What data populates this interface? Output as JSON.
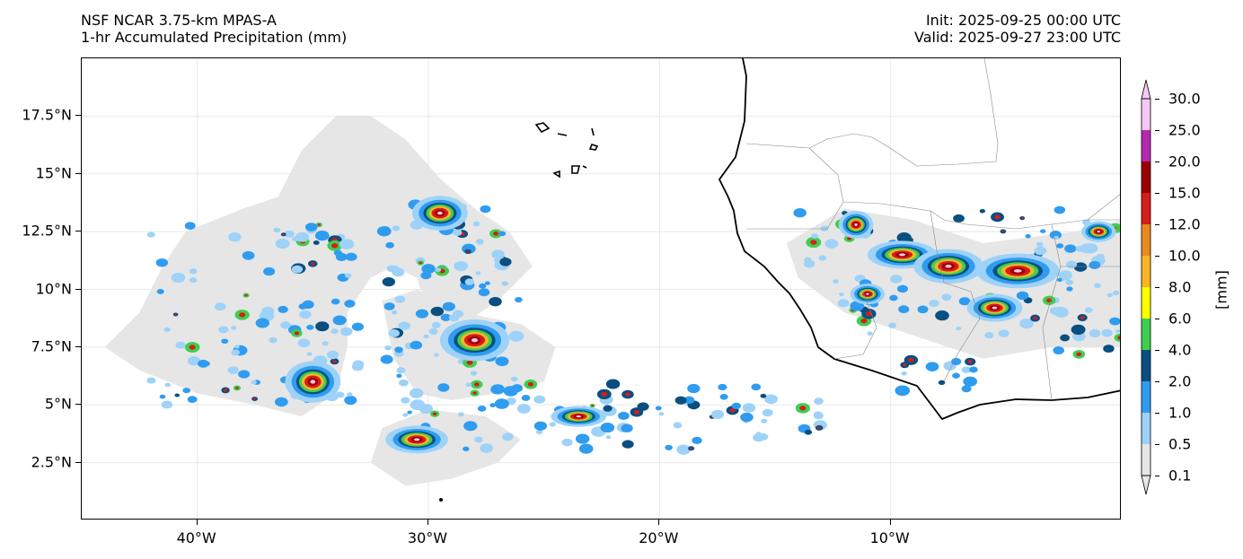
{
  "header": {
    "model": "NSF NCAR 3.75-km MPAS-A",
    "field": "1-hr Accumulated Precipitation (mm)",
    "init": "Init: 2025-09-25 00:00 UTC",
    "valid": "Valid: 2025-09-27 23:00 UTC"
  },
  "map": {
    "lon_range": [
      -45,
      0
    ],
    "lat_range": [
      0,
      20
    ],
    "x_ticks": [
      {
        "value": -40,
        "label": "40°W"
      },
      {
        "value": -30,
        "label": "30°W"
      },
      {
        "value": -20,
        "label": "20°W"
      },
      {
        "value": -10,
        "label": "10°W"
      }
    ],
    "y_ticks": [
      {
        "value": 2.5,
        "label": "2.5°N"
      },
      {
        "value": 5,
        "label": "5°N"
      },
      {
        "value": 7.5,
        "label": "7.5°N"
      },
      {
        "value": 10,
        "label": "10°N"
      },
      {
        "value": 12.5,
        "label": "12.5°N"
      },
      {
        "value": 15,
        "label": "15°N"
      },
      {
        "value": 17.5,
        "label": "17.5°N"
      }
    ],
    "grid": true,
    "light_rain_areas": [
      [
        [
          -42.5,
          9.0
        ],
        [
          -41.5,
          11.0
        ],
        [
          -40.5,
          12.5
        ],
        [
          -38.0,
          13.5
        ],
        [
          -36.5,
          14.0
        ],
        [
          -35.5,
          16.0
        ],
        [
          -34.0,
          17.5
        ],
        [
          -32.5,
          17.5
        ],
        [
          -31.0,
          16.5
        ],
        [
          -29.5,
          14.8
        ],
        [
          -28.0,
          13.5
        ],
        [
          -26.5,
          12.5
        ],
        [
          -25.5,
          11.0
        ],
        [
          -27.0,
          9.5
        ],
        [
          -28.5,
          8.5
        ],
        [
          -30.0,
          9.0
        ],
        [
          -30.5,
          10.5
        ],
        [
          -31.5,
          11.0
        ],
        [
          -32.5,
          10.5
        ],
        [
          -33.5,
          9.0
        ],
        [
          -33.5,
          7.5
        ],
        [
          -34.0,
          5.5
        ],
        [
          -35.5,
          4.5
        ],
        [
          -37.5,
          5.0
        ],
        [
          -40.0,
          5.5
        ],
        [
          -42.5,
          6.5
        ],
        [
          -44.0,
          7.5
        ]
      ],
      [
        [
          -32.0,
          9.5
        ],
        [
          -30.5,
          10.0
        ],
        [
          -28.5,
          9.0
        ],
        [
          -26.0,
          8.5
        ],
        [
          -24.5,
          7.5
        ],
        [
          -25.0,
          6.0
        ],
        [
          -27.0,
          5.5
        ],
        [
          -29.0,
          5.2
        ],
        [
          -30.5,
          5.5
        ],
        [
          -31.5,
          7.0
        ]
      ],
      [
        [
          -32.5,
          2.5
        ],
        [
          -31.0,
          1.5
        ],
        [
          -29.0,
          1.8
        ],
        [
          -27.0,
          2.5
        ],
        [
          -26.0,
          3.5
        ],
        [
          -27.5,
          4.5
        ],
        [
          -30.0,
          4.8
        ],
        [
          -32.0,
          4.0
        ]
      ],
      [
        [
          -14.5,
          12.0
        ],
        [
          -12.0,
          13.5
        ],
        [
          -9.0,
          13.0
        ],
        [
          -6.0,
          12.0
        ],
        [
          -2.0,
          12.5
        ],
        [
          0,
          13.0
        ],
        [
          0,
          7.5
        ],
        [
          -3.0,
          7.5
        ],
        [
          -6.0,
          7.0
        ],
        [
          -9.0,
          8.0
        ],
        [
          -12.0,
          9.0
        ],
        [
          -14.0,
          10.5
        ]
      ]
    ],
    "core_cells": [
      {
        "lon": -29.5,
        "lat": 13.3,
        "rx": 0.8,
        "ry": 0.5
      },
      {
        "lon": -28.0,
        "lat": 7.8,
        "rx": 1.0,
        "ry": 0.6
      },
      {
        "lon": -35.0,
        "lat": 6.0,
        "rx": 0.8,
        "ry": 0.6
      },
      {
        "lon": -30.5,
        "lat": 3.5,
        "rx": 0.9,
        "ry": 0.4
      },
      {
        "lon": -23.5,
        "lat": 4.5,
        "rx": 0.8,
        "ry": 0.3
      },
      {
        "lon": -9.5,
        "lat": 11.5,
        "rx": 1.0,
        "ry": 0.4
      },
      {
        "lon": -11.5,
        "lat": 12.8,
        "rx": 0.5,
        "ry": 0.4
      },
      {
        "lon": -7.5,
        "lat": 11.0,
        "rx": 1.0,
        "ry": 0.5
      },
      {
        "lon": -4.5,
        "lat": 10.8,
        "rx": 1.2,
        "ry": 0.5
      },
      {
        "lon": -5.5,
        "lat": 9.2,
        "rx": 0.8,
        "ry": 0.4
      },
      {
        "lon": -11.0,
        "lat": 9.8,
        "rx": 0.5,
        "ry": 0.3
      },
      {
        "lon": -1.0,
        "lat": 12.5,
        "rx": 0.5,
        "ry": 0.3
      }
    ]
  },
  "colorbar": {
    "unit": "[mm]",
    "levels": [
      "0.1",
      "0.5",
      "1.0",
      "2.0",
      "4.0",
      "6.0",
      "8.0",
      "10.0",
      "12.0",
      "15.0",
      "20.0",
      "25.0",
      "30.0"
    ],
    "colors": [
      "#e6e6e6",
      "#9ed2f8",
      "#2f9cf0",
      "#0a4f80",
      "#3fcf4f",
      "#ffff00",
      "#f7b526",
      "#e88a1e",
      "#d71c1c",
      "#9c0000",
      "#b52ab0",
      "#f6c8f2"
    ]
  },
  "colors": {
    "light_rain": "#e6e6e6",
    "coastline": "#000000",
    "borders": "#888888",
    "grid": "#e8e8e8"
  }
}
